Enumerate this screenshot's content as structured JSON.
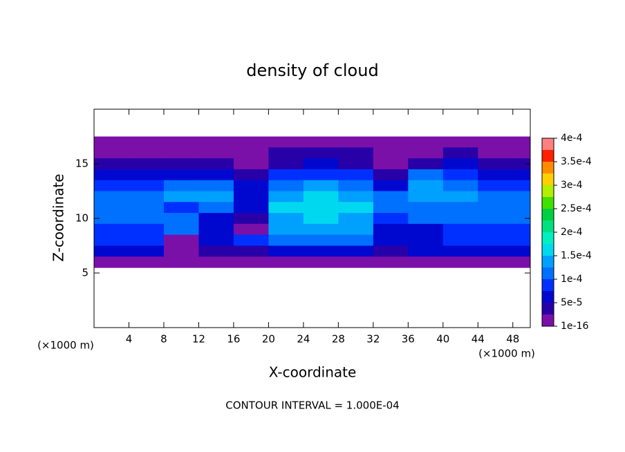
{
  "chart_data": {
    "type": "contourf",
    "title": "density of cloud",
    "xlabel": "X-coordinate",
    "ylabel": "Z-coordinate",
    "y_unit": "(×1000 m)",
    "x_unit": "(×1000 m)",
    "footnote": "CONTOUR INTERVAL = 1.000E-04",
    "xlim": [
      0,
      50
    ],
    "ylim": [
      0,
      20
    ],
    "xticks": [
      4,
      8,
      12,
      16,
      20,
      24,
      28,
      32,
      36,
      40,
      44,
      48
    ],
    "yticks": [
      5,
      10,
      15
    ],
    "field": {
      "x": [
        2,
        6,
        10,
        14,
        18,
        22,
        26,
        30,
        34,
        38,
        42,
        46,
        50
      ],
      "z": [
        17,
        16,
        15,
        14,
        13,
        12,
        11,
        10,
        9,
        8,
        7,
        6
      ],
      "values": [
        [
          1e-05,
          1e-05,
          1e-05,
          1e-05,
          1e-05,
          1e-05,
          1e-05,
          1e-05,
          1e-05,
          1e-05,
          1e-05,
          1e-05,
          1e-05
        ],
        [
          2e-05,
          2e-05,
          2e-05,
          2e-05,
          2e-05,
          3e-05,
          3e-05,
          3e-05,
          2e-05,
          2e-05,
          3e-05,
          2e-05,
          2e-05
        ],
        [
          4e-05,
          3e-05,
          3e-05,
          3e-05,
          2e-05,
          4e-05,
          5e-05,
          4e-05,
          2e-05,
          4e-05,
          5e-05,
          3e-05,
          3e-05
        ],
        [
          7e-05,
          6e-05,
          6e-05,
          7e-05,
          4e-05,
          8e-05,
          9e-05,
          8e-05,
          4e-05,
          0.00011,
          9e-05,
          6e-05,
          6e-05
        ],
        [
          9e-05,
          8e-05,
          0.00012,
          0.00012,
          5e-05,
          0.00012,
          0.00014,
          0.00012,
          6e-05,
          0.00014,
          0.00011,
          9e-05,
          8e-05
        ],
        [
          0.00011,
          0.0001,
          0.00014,
          0.00013,
          6e-05,
          0.00014,
          0.00016,
          0.00014,
          0.0001,
          0.00013,
          0.00014,
          0.00012,
          0.00011
        ],
        [
          0.00012,
          0.00011,
          9e-05,
          0.0001,
          7e-05,
          0.00015,
          0.00016,
          0.00015,
          0.00012,
          0.0001,
          0.00011,
          0.00012,
          0.00012
        ],
        [
          0.00011,
          0.0001,
          0.0001,
          6e-05,
          3e-05,
          0.00014,
          0.00015,
          0.00014,
          9e-05,
          0.0001,
          0.00011,
          0.00011,
          0.00011
        ],
        [
          9e-05,
          8e-05,
          0.0001,
          5e-05,
          2e-05,
          0.00013,
          0.00013,
          0.00013,
          5e-05,
          7e-05,
          9e-05,
          9e-05,
          9e-05
        ],
        [
          8e-05,
          8e-05,
          2e-05,
          6e-05,
          8e-05,
          0.00011,
          0.00011,
          0.00011,
          5e-05,
          7e-05,
          8e-05,
          8e-05,
          8e-05
        ],
        [
          5e-05,
          5e-05,
          2e-05,
          4e-05,
          4e-05,
          6e-05,
          6e-05,
          6e-05,
          4e-05,
          5e-05,
          5e-05,
          5e-05,
          5e-05
        ],
        [
          1e-05,
          1e-05,
          1e-05,
          1e-05,
          1e-05,
          1e-05,
          1e-05,
          1e-05,
          1e-05,
          1e-05,
          1e-05,
          1e-05,
          1e-05
        ]
      ]
    },
    "colorbar": {
      "levels": [
        1e-16,
        2.5e-05,
        5e-05,
        7.5e-05,
        0.0001,
        0.000125,
        0.00015,
        0.000175,
        0.0002,
        0.000225,
        0.00025,
        0.000275,
        0.0003,
        0.000325,
        0.00035,
        0.000375,
        0.0004
      ],
      "colors": [
        "#7a10a8",
        "#2800a8",
        "#0008d0",
        "#0030ff",
        "#0070ff",
        "#00a0ff",
        "#00d8f0",
        "#00f0c0",
        "#00e080",
        "#00d040",
        "#40e000",
        "#b0f000",
        "#ffd000",
        "#ff8c00",
        "#ff2000",
        "#ff8080"
      ],
      "ticks": [
        1e-16,
        {
          "value": 5e-05,
          "label": "5e-5"
        },
        {
          "value": 0.0001,
          "label": "1e-4"
        },
        {
          "value": 0.00015,
          "label": "1.5e-4"
        },
        {
          "value": 0.0002,
          "label": "2e-4"
        },
        {
          "value": 0.00025,
          "label": "2.5e-4"
        },
        {
          "value": 0.0003,
          "label": "3e-4"
        },
        {
          "value": 0.00035,
          "label": "3.5e-4"
        },
        {
          "value": 0.0004,
          "label": "4e-4"
        }
      ]
    }
  }
}
